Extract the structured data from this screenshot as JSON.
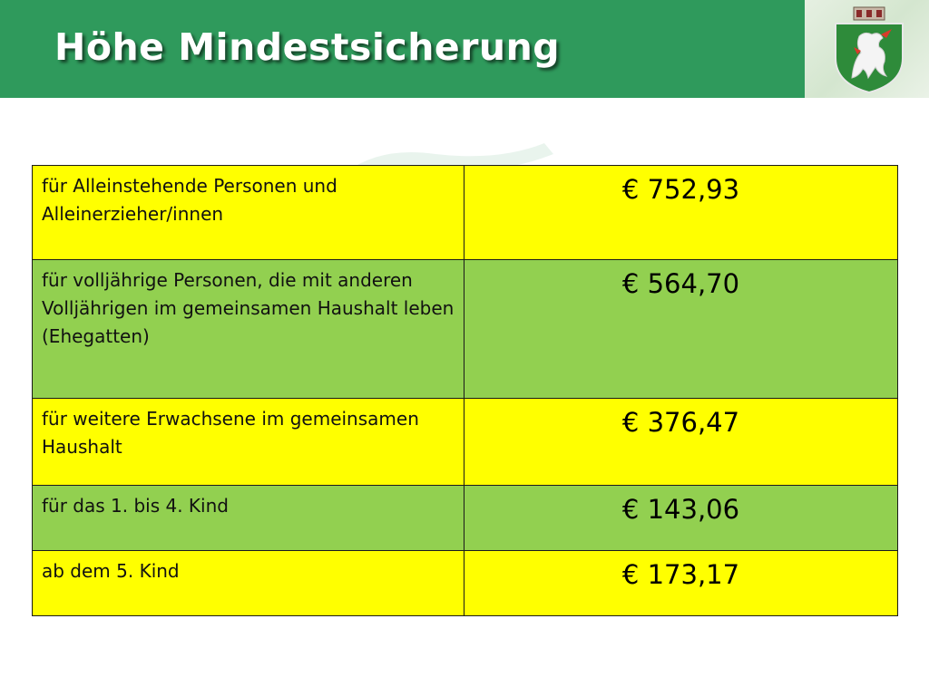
{
  "slide": {
    "title": "Höhe Mindestsicherung"
  },
  "colors": {
    "header": "#2f9a5c",
    "row_yellow": "#ffff00",
    "row_green": "#92d050"
  },
  "crest": {
    "icon": "styrian-panther-crest-icon"
  },
  "table": {
    "rows": [
      {
        "label": "für Alleinstehende Personen und Alleinerzieher/innen",
        "amount": "€ 752,93",
        "color": "yellow"
      },
      {
        "label": "für volljährige Personen, die mit anderen Volljährigen im gemeinsamen Haushalt leben (Ehegatten)",
        "amount": "€ 564,70",
        "color": "green"
      },
      {
        "label": "für weitere Erwachsene im gemeinsamen Haushalt",
        "amount": "€ 376,47",
        "color": "yellow"
      },
      {
        "label": "für das 1. bis 4. Kind",
        "amount": "€ 143,06",
        "color": "green"
      },
      {
        "label": "ab dem 5. Kind",
        "amount": "€ 173,17",
        "color": "yellow"
      }
    ]
  }
}
